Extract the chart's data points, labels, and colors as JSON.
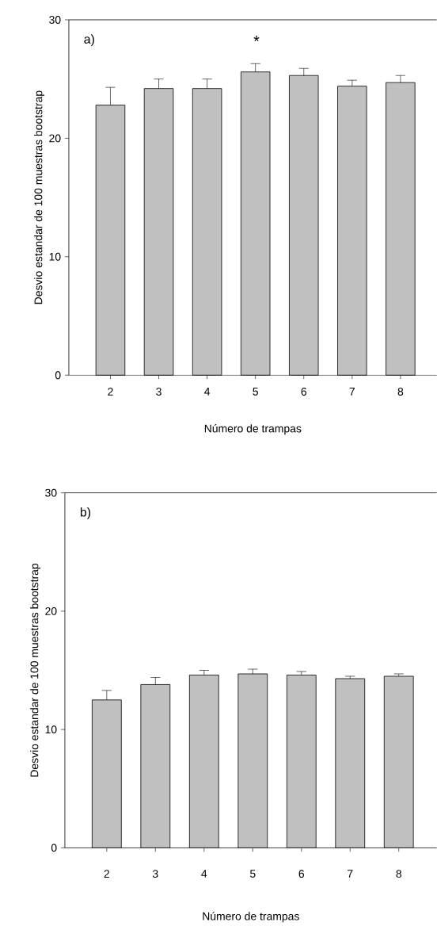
{
  "chart_data": [
    {
      "type": "bar",
      "categories": [
        "2",
        "3",
        "4",
        "5",
        "6",
        "7",
        "8"
      ],
      "values": [
        22.8,
        24.2,
        24.2,
        25.6,
        25.3,
        24.4,
        24.7
      ],
      "color": "#c0c0c0",
      "errors": [
        [
          22.8,
          24.3
        ],
        [
          24.2,
          25.0
        ],
        [
          24.2,
          25.0
        ],
        [
          25.6,
          26.3
        ],
        [
          25.3,
          25.9
        ],
        [
          24.4,
          24.9
        ],
        [
          24.7,
          25.3
        ]
      ],
      "ylim": [
        0,
        30
      ],
      "yticks": [
        0,
        10,
        20,
        30
      ],
      "xlabel": "Número de trampas",
      "ylabel": "Desvio estandar de 100 muestras bootstrap",
      "annotations": [
        "a)",
        "*"
      ]
    },
    {
      "type": "bar",
      "categories": [
        "2",
        "3",
        "4",
        "5",
        "6",
        "7",
        "8"
      ],
      "values": [
        12.5,
        13.8,
        14.6,
        14.7,
        14.6,
        14.3,
        14.5
      ],
      "color": "#c0c0c0",
      "errors": [
        [
          12.5,
          13.3
        ],
        [
          13.8,
          14.4
        ],
        [
          14.6,
          15.0
        ],
        [
          14.7,
          15.1
        ],
        [
          14.6,
          14.9
        ],
        [
          14.3,
          14.5
        ],
        [
          14.5,
          14.7
        ]
      ],
      "ylim": [
        0,
        30
      ],
      "yticks": [
        0,
        10,
        20,
        30
      ],
      "xlabel": "Número de trampas",
      "ylabel": "Desvio estandar de 100 muestras bootstrap",
      "annotations": [
        "b)"
      ]
    }
  ]
}
